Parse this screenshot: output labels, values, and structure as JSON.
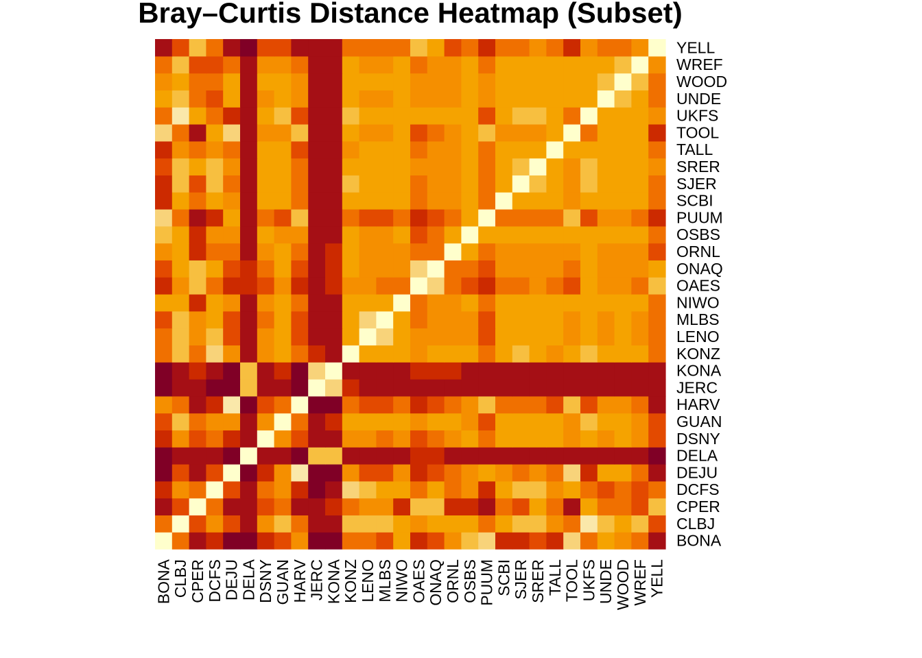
{
  "chart_data": {
    "type": "heatmap",
    "title": "Bray–Curtis Distance Heatmap (Subset)",
    "labels": [
      "BONA",
      "CLBJ",
      "CPER",
      "DCFS",
      "DEJU",
      "DELA",
      "DSNY",
      "GUAN",
      "HARV",
      "JERC",
      "KONA",
      "KONZ",
      "LENO",
      "MLBS",
      "NIWO",
      "OAES",
      "ONAQ",
      "ORNL",
      "OSBS",
      "PUUM",
      "SCBI",
      "SJER",
      "SRER",
      "TALL",
      "TOOL",
      "UKFS",
      "UNDE",
      "WOOD",
      "WREF",
      "YELL"
    ],
    "color_levels": [
      "#800026",
      "#A50F15",
      "#CC2A00",
      "#E34A00",
      "#F07000",
      "#F58F00",
      "#F5A300",
      "#F7BF40",
      "#F8D37A",
      "#FAE8AA",
      "#FFFFCC"
    ],
    "matrix": [
      [
        10,
        4,
        1,
        2,
        0,
        0,
        2,
        3,
        5,
        0,
        0,
        4,
        4,
        3,
        6,
        2,
        3,
        5,
        7,
        8,
        2,
        2,
        3,
        2,
        8,
        4,
        6,
        5,
        4,
        1
      ],
      [
        4,
        10,
        3,
        5,
        3,
        1,
        5,
        7,
        4,
        1,
        1,
        7,
        7,
        7,
        6,
        5,
        6,
        6,
        6,
        4,
        6,
        7,
        7,
        5,
        4,
        9,
        7,
        6,
        7,
        3
      ],
      [
        1,
        3,
        10,
        4,
        1,
        1,
        3,
        4,
        1,
        1,
        2,
        4,
        5,
        5,
        2,
        7,
        7,
        2,
        2,
        1,
        4,
        3,
        6,
        4,
        1,
        6,
        4,
        4,
        3,
        7
      ],
      [
        2,
        5,
        4,
        10,
        3,
        1,
        4,
        5,
        2,
        0,
        1,
        8,
        7,
        6,
        6,
        4,
        6,
        4,
        5,
        2,
        6,
        7,
        7,
        5,
        6,
        4,
        3,
        4,
        3,
        4
      ],
      [
        0,
        3,
        1,
        3,
        10,
        0,
        2,
        5,
        9,
        0,
        0,
        5,
        3,
        3,
        5,
        2,
        3,
        4,
        5,
        6,
        5,
        4,
        5,
        4,
        8,
        2,
        6,
        6,
        4,
        1
      ],
      [
        0,
        1,
        1,
        1,
        0,
        10,
        1,
        1,
        0,
        7,
        7,
        1,
        1,
        1,
        1,
        2,
        2,
        1,
        1,
        1,
        1,
        1,
        1,
        1,
        1,
        1,
        1,
        1,
        1,
        0
      ],
      [
        2,
        5,
        3,
        4,
        2,
        1,
        10,
        5,
        3,
        1,
        1,
        5,
        5,
        4,
        5,
        3,
        4,
        5,
        6,
        4,
        6,
        6,
        6,
        6,
        5,
        6,
        5,
        6,
        5,
        3
      ],
      [
        3,
        7,
        4,
        5,
        5,
        1,
        5,
        10,
        4,
        1,
        2,
        6,
        6,
        6,
        6,
        5,
        6,
        6,
        5,
        3,
        6,
        6,
        6,
        6,
        5,
        7,
        6,
        6,
        5,
        3
      ],
      [
        5,
        4,
        1,
        2,
        9,
        0,
        3,
        4,
        10,
        0,
        0,
        4,
        3,
        3,
        4,
        2,
        3,
        4,
        5,
        7,
        4,
        4,
        4,
        3,
        7,
        3,
        5,
        5,
        4,
        1
      ],
      [
        0,
        1,
        1,
        0,
        0,
        7,
        1,
        1,
        0,
        10,
        8,
        2,
        1,
        1,
        1,
        1,
        1,
        1,
        1,
        1,
        1,
        1,
        1,
        1,
        1,
        1,
        1,
        1,
        1,
        1
      ],
      [
        0,
        1,
        2,
        1,
        0,
        7,
        1,
        2,
        0,
        8,
        10,
        1,
        1,
        1,
        1,
        2,
        2,
        2,
        1,
        1,
        1,
        1,
        1,
        1,
        1,
        1,
        1,
        1,
        1,
        1
      ],
      [
        4,
        7,
        4,
        8,
        5,
        1,
        5,
        6,
        4,
        2,
        1,
        10,
        6,
        6,
        6,
        5,
        6,
        6,
        6,
        4,
        6,
        7,
        6,
        5,
        6,
        7,
        6,
        6,
        6,
        4
      ],
      [
        4,
        7,
        5,
        7,
        3,
        1,
        5,
        6,
        3,
        1,
        1,
        6,
        10,
        8,
        6,
        5,
        5,
        5,
        5,
        3,
        6,
        6,
        6,
        6,
        5,
        6,
        5,
        6,
        5,
        4
      ],
      [
        3,
        7,
        5,
        6,
        3,
        1,
        4,
        6,
        3,
        1,
        1,
        6,
        8,
        10,
        6,
        4,
        5,
        5,
        5,
        3,
        6,
        6,
        6,
        6,
        5,
        6,
        5,
        6,
        5,
        4
      ],
      [
        6,
        6,
        2,
        6,
        5,
        1,
        5,
        6,
        4,
        1,
        1,
        6,
        6,
        6,
        10,
        4,
        5,
        5,
        6,
        4,
        6,
        6,
        6,
        6,
        6,
        6,
        6,
        6,
        6,
        4
      ],
      [
        2,
        5,
        7,
        4,
        2,
        2,
        3,
        5,
        2,
        1,
        2,
        5,
        5,
        4,
        4,
        10,
        8,
        4,
        3,
        2,
        4,
        4,
        5,
        4,
        3,
        6,
        5,
        5,
        4,
        7
      ],
      [
        3,
        6,
        7,
        6,
        3,
        2,
        4,
        6,
        3,
        1,
        2,
        6,
        5,
        5,
        5,
        8,
        10,
        4,
        4,
        3,
        5,
        5,
        5,
        5,
        4,
        6,
        5,
        5,
        5,
        6
      ],
      [
        5,
        6,
        2,
        4,
        4,
        1,
        5,
        6,
        4,
        1,
        2,
        6,
        5,
        5,
        5,
        4,
        4,
        10,
        6,
        4,
        5,
        5,
        5,
        5,
        5,
        6,
        5,
        5,
        5,
        3
      ],
      [
        7,
        6,
        2,
        5,
        5,
        1,
        6,
        5,
        5,
        1,
        1,
        6,
        5,
        5,
        6,
        3,
        4,
        6,
        10,
        6,
        6,
        6,
        6,
        6,
        6,
        6,
        6,
        6,
        6,
        4
      ],
      [
        8,
        4,
        1,
        2,
        6,
        1,
        4,
        3,
        7,
        1,
        1,
        4,
        3,
        3,
        4,
        2,
        3,
        4,
        6,
        10,
        4,
        4,
        4,
        4,
        7,
        3,
        5,
        5,
        4,
        2
      ],
      [
        2,
        6,
        4,
        6,
        5,
        1,
        6,
        6,
        4,
        1,
        1,
        6,
        6,
        6,
        6,
        4,
        5,
        5,
        6,
        4,
        10,
        6,
        6,
        6,
        5,
        6,
        6,
        6,
        6,
        4
      ],
      [
        2,
        7,
        3,
        7,
        4,
        1,
        6,
        6,
        4,
        1,
        1,
        7,
        6,
        6,
        6,
        4,
        5,
        5,
        6,
        4,
        6,
        10,
        7,
        6,
        5,
        7,
        6,
        6,
        6,
        4
      ],
      [
        3,
        7,
        6,
        7,
        5,
        1,
        6,
        6,
        4,
        1,
        1,
        6,
        6,
        6,
        6,
        5,
        5,
        5,
        6,
        4,
        6,
        7,
        10,
        6,
        5,
        7,
        6,
        6,
        6,
        5
      ],
      [
        2,
        5,
        4,
        5,
        4,
        1,
        6,
        6,
        3,
        1,
        1,
        5,
        6,
        6,
        6,
        4,
        5,
        5,
        6,
        4,
        6,
        6,
        6,
        10,
        6,
        6,
        6,
        6,
        6,
        4
      ],
      [
        8,
        4,
        1,
        6,
        8,
        1,
        5,
        5,
        7,
        1,
        1,
        6,
        5,
        5,
        6,
        3,
        4,
        5,
        6,
        7,
        5,
        5,
        5,
        6,
        10,
        4,
        6,
        6,
        6,
        2
      ],
      [
        4,
        9,
        6,
        4,
        2,
        1,
        6,
        7,
        3,
        1,
        1,
        7,
        6,
        6,
        6,
        6,
        6,
        6,
        6,
        3,
        6,
        7,
        7,
        6,
        4,
        10,
        6,
        6,
        6,
        5
      ],
      [
        6,
        7,
        4,
        3,
        6,
        1,
        5,
        6,
        5,
        1,
        1,
        6,
        5,
        5,
        6,
        5,
        5,
        5,
        6,
        5,
        6,
        6,
        6,
        6,
        6,
        6,
        10,
        7,
        6,
        4
      ],
      [
        5,
        6,
        4,
        4,
        6,
        1,
        6,
        6,
        5,
        1,
        1,
        6,
        6,
        6,
        6,
        5,
        5,
        5,
        6,
        5,
        6,
        6,
        6,
        6,
        6,
        6,
        7,
        10,
        7,
        4
      ],
      [
        4,
        7,
        3,
        3,
        4,
        1,
        5,
        5,
        4,
        1,
        1,
        6,
        5,
        5,
        6,
        4,
        5,
        5,
        6,
        4,
        6,
        6,
        6,
        6,
        6,
        6,
        6,
        7,
        10,
        5
      ],
      [
        1,
        3,
        7,
        4,
        1,
        0,
        3,
        3,
        1,
        1,
        1,
        4,
        4,
        4,
        4,
        7,
        6,
        3,
        4,
        2,
        4,
        4,
        5,
        4,
        2,
        5,
        4,
        4,
        5,
        10
      ]
    ]
  }
}
